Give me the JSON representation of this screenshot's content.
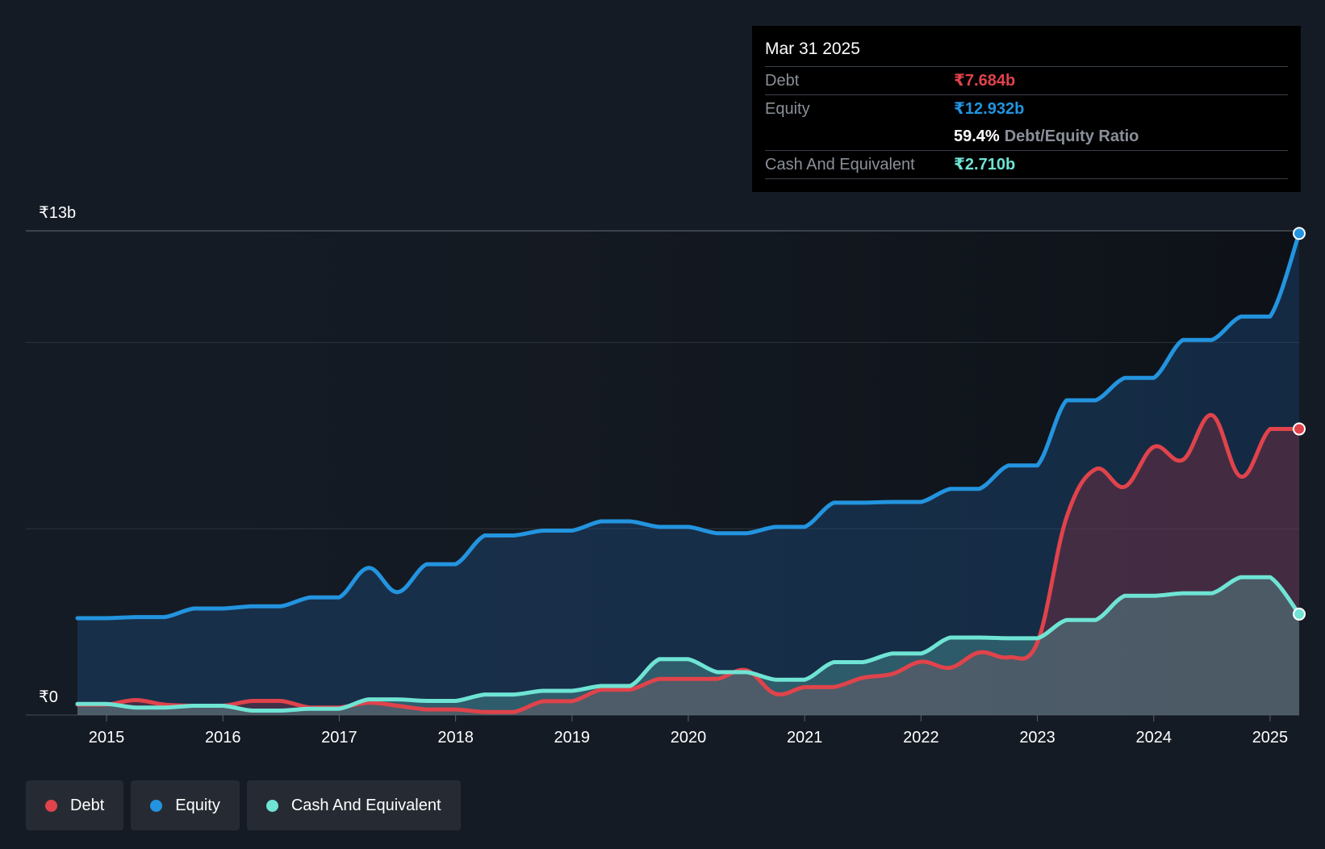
{
  "colors": {
    "background": "#151b24",
    "debt": "#e0434b",
    "equity": "#2394df",
    "cash": "#6fe4d4"
  },
  "tooltip": {
    "date": "Mar 31 2025",
    "debt_label": "Debt",
    "debt_value": "₹7.684b",
    "equity_label": "Equity",
    "equity_value": "₹12.932b",
    "ratio_value": "59.4%",
    "ratio_label": "Debt/Equity Ratio",
    "cash_label": "Cash And Equivalent",
    "cash_value": "₹2.710b"
  },
  "legend": [
    {
      "label": "Debt",
      "color": "#e0434b"
    },
    {
      "label": "Equity",
      "color": "#2394df"
    },
    {
      "label": "Cash And Equivalent",
      "color": "#6fe4d4"
    }
  ],
  "chart_data": {
    "type": "area",
    "y_top_label": "₹13b",
    "y_bottom_label": "₹0",
    "ylim": [
      0,
      13
    ],
    "xlim": [
      2014.75,
      2025.25
    ],
    "x_ticks": [
      "2015",
      "2016",
      "2017",
      "2018",
      "2019",
      "2020",
      "2021",
      "2022",
      "2023",
      "2024",
      "2025"
    ],
    "grid": true,
    "series": [
      {
        "name": "Equity",
        "color": "#2394df",
        "points": [
          [
            2014.75,
            2.6
          ],
          [
            2015.0,
            2.6
          ],
          [
            2015.25,
            2.63
          ],
          [
            2015.5,
            2.63
          ],
          [
            2015.75,
            2.86
          ],
          [
            2016.0,
            2.86
          ],
          [
            2016.25,
            2.92
          ],
          [
            2016.5,
            2.92
          ],
          [
            2016.75,
            3.16
          ],
          [
            2017.0,
            3.16
          ],
          [
            2017.25,
            3.95
          ],
          [
            2017.5,
            3.3
          ],
          [
            2017.75,
            4.05
          ],
          [
            2018.0,
            4.05
          ],
          [
            2018.25,
            4.82
          ],
          [
            2018.5,
            4.82
          ],
          [
            2018.75,
            4.95
          ],
          [
            2019.0,
            4.95
          ],
          [
            2019.25,
            5.2
          ],
          [
            2019.5,
            5.2
          ],
          [
            2019.75,
            5.05
          ],
          [
            2020.0,
            5.05
          ],
          [
            2020.25,
            4.88
          ],
          [
            2020.5,
            4.88
          ],
          [
            2020.75,
            5.05
          ],
          [
            2021.0,
            5.05
          ],
          [
            2021.25,
            5.7
          ],
          [
            2021.5,
            5.7
          ],
          [
            2021.75,
            5.72
          ],
          [
            2022.0,
            5.72
          ],
          [
            2022.25,
            6.07
          ],
          [
            2022.5,
            6.07
          ],
          [
            2022.75,
            6.7
          ],
          [
            2023.0,
            6.7
          ],
          [
            2023.25,
            8.45
          ],
          [
            2023.5,
            8.45
          ],
          [
            2023.75,
            9.05
          ],
          [
            2024.0,
            9.05
          ],
          [
            2024.25,
            10.07
          ],
          [
            2024.5,
            10.07
          ],
          [
            2024.75,
            10.7
          ],
          [
            2025.0,
            10.7
          ],
          [
            2025.25,
            12.93
          ]
        ]
      },
      {
        "name": "Debt",
        "color": "#e0434b",
        "points": [
          [
            2014.75,
            0.28
          ],
          [
            2015.0,
            0.28
          ],
          [
            2015.25,
            0.4
          ],
          [
            2015.5,
            0.28
          ],
          [
            2015.75,
            0.25
          ],
          [
            2016.0,
            0.25
          ],
          [
            2016.25,
            0.38
          ],
          [
            2016.5,
            0.38
          ],
          [
            2016.75,
            0.2
          ],
          [
            2017.0,
            0.2
          ],
          [
            2017.25,
            0.33
          ],
          [
            2017.5,
            0.25
          ],
          [
            2017.75,
            0.15
          ],
          [
            2018.0,
            0.15
          ],
          [
            2018.25,
            0.08
          ],
          [
            2018.5,
            0.08
          ],
          [
            2018.75,
            0.37
          ],
          [
            2019.0,
            0.37
          ],
          [
            2019.25,
            0.68
          ],
          [
            2019.5,
            0.68
          ],
          [
            2019.75,
            0.97
          ],
          [
            2020.0,
            0.97
          ],
          [
            2020.25,
            0.97
          ],
          [
            2020.5,
            1.2
          ],
          [
            2020.75,
            0.57
          ],
          [
            2021.0,
            0.75
          ],
          [
            2021.25,
            0.75
          ],
          [
            2021.5,
            1.0
          ],
          [
            2021.75,
            1.1
          ],
          [
            2022.0,
            1.43
          ],
          [
            2022.25,
            1.27
          ],
          [
            2022.5,
            1.68
          ],
          [
            2022.75,
            1.55
          ],
          [
            2023.0,
            1.95
          ],
          [
            2023.25,
            5.3
          ],
          [
            2023.5,
            6.6
          ],
          [
            2023.75,
            6.13
          ],
          [
            2024.0,
            7.2
          ],
          [
            2024.25,
            6.85
          ],
          [
            2024.5,
            8.05
          ],
          [
            2024.75,
            6.4
          ],
          [
            2025.0,
            7.68
          ],
          [
            2025.25,
            7.68
          ]
        ]
      },
      {
        "name": "Cash And Equivalent",
        "color": "#6fe4d4",
        "points": [
          [
            2014.75,
            0.3
          ],
          [
            2015.0,
            0.3
          ],
          [
            2015.25,
            0.2
          ],
          [
            2015.5,
            0.2
          ],
          [
            2015.75,
            0.25
          ],
          [
            2016.0,
            0.25
          ],
          [
            2016.25,
            0.12
          ],
          [
            2016.5,
            0.12
          ],
          [
            2016.75,
            0.17
          ],
          [
            2017.0,
            0.17
          ],
          [
            2017.25,
            0.42
          ],
          [
            2017.5,
            0.42
          ],
          [
            2017.75,
            0.38
          ],
          [
            2018.0,
            0.38
          ],
          [
            2018.25,
            0.55
          ],
          [
            2018.5,
            0.55
          ],
          [
            2018.75,
            0.65
          ],
          [
            2019.0,
            0.65
          ],
          [
            2019.25,
            0.78
          ],
          [
            2019.5,
            0.78
          ],
          [
            2019.75,
            1.5
          ],
          [
            2020.0,
            1.5
          ],
          [
            2020.25,
            1.15
          ],
          [
            2020.5,
            1.15
          ],
          [
            2020.75,
            0.95
          ],
          [
            2021.0,
            0.95
          ],
          [
            2021.25,
            1.42
          ],
          [
            2021.5,
            1.42
          ],
          [
            2021.75,
            1.65
          ],
          [
            2022.0,
            1.65
          ],
          [
            2022.25,
            2.08
          ],
          [
            2022.5,
            2.08
          ],
          [
            2022.75,
            2.06
          ],
          [
            2023.0,
            2.06
          ],
          [
            2023.25,
            2.55
          ],
          [
            2023.5,
            2.55
          ],
          [
            2023.75,
            3.2
          ],
          [
            2024.0,
            3.2
          ],
          [
            2024.25,
            3.27
          ],
          [
            2024.5,
            3.27
          ],
          [
            2024.75,
            3.7
          ],
          [
            2025.0,
            3.7
          ],
          [
            2025.25,
            2.71
          ]
        ]
      }
    ]
  }
}
